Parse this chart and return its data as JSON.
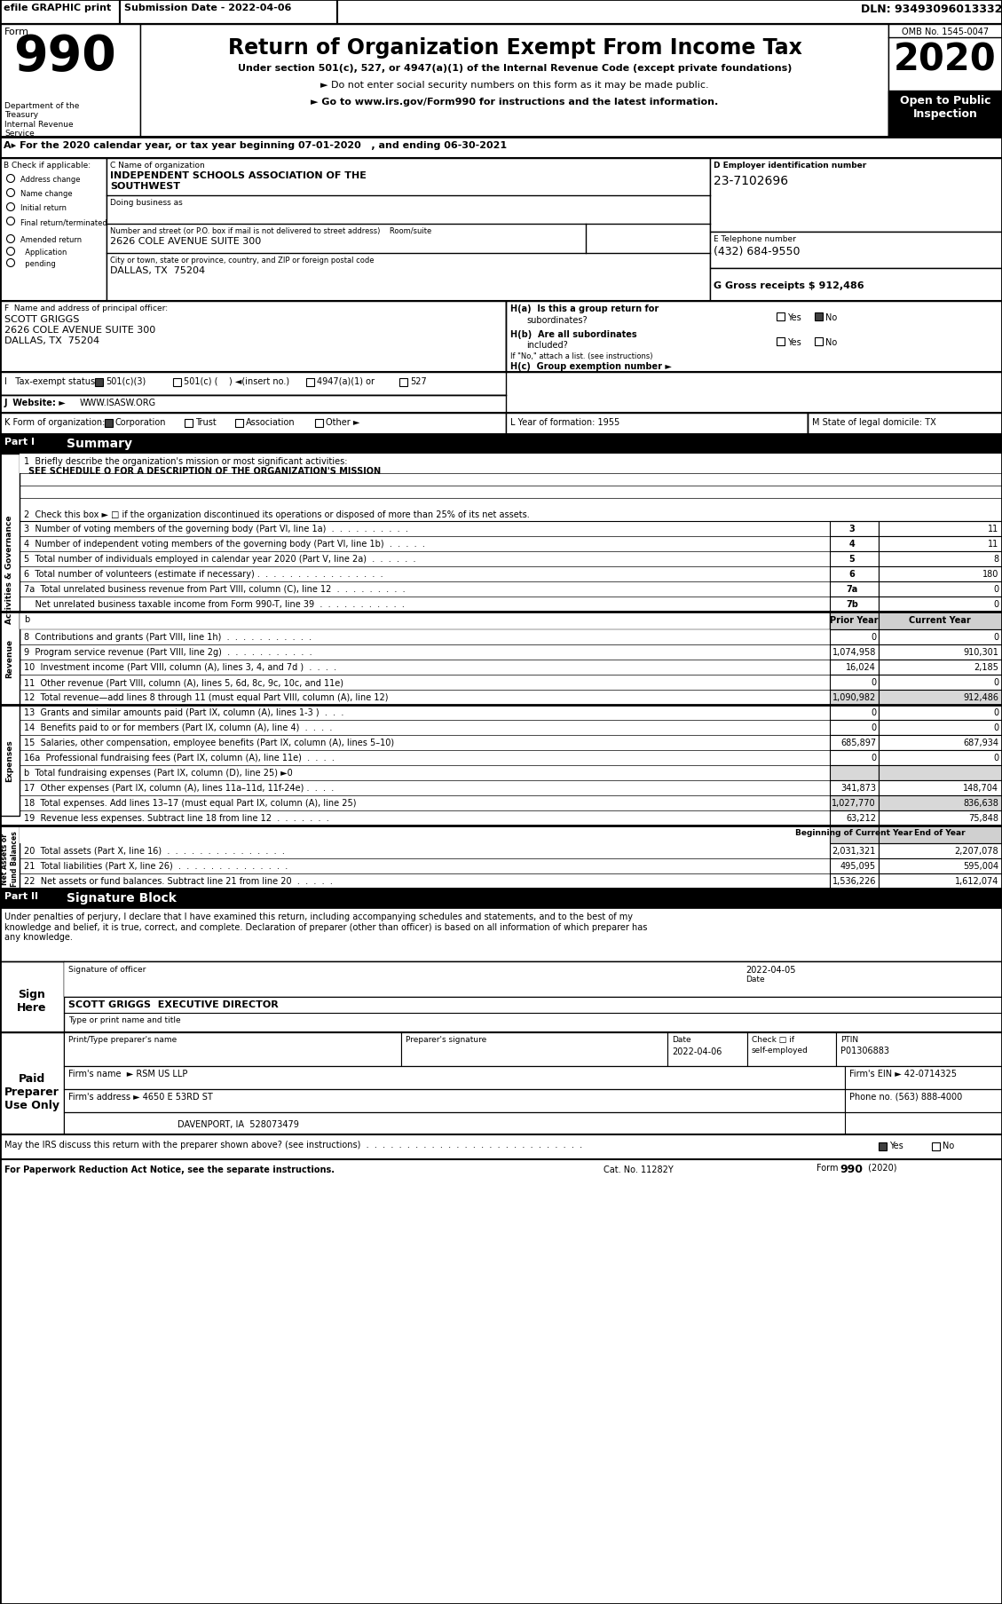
{
  "title": "Return of Organization Exempt From Income Tax",
  "form_number": "990",
  "year": "2020",
  "omb": "OMB No. 1545-0047",
  "efile_text": "efile GRAPHIC print",
  "submission_date": "Submission Date - 2022-04-06",
  "dln": "DLN: 93493096013332",
  "under_section": "Under section 501(c), 527, or 4947(a)(1) of the Internal Revenue Code (except private foundations)",
  "do_not_enter": "► Do not enter social security numbers on this form as it may be made public.",
  "go_to": "► Go to www.irs.gov/Form990 for instructions and the latest information.",
  "open_to_public": "Open to Public\nInspection",
  "section_a": "A▸ For the 2020 calendar year, or tax year beginning 07-01-2020   , and ending 06-30-2021",
  "org_name": "INDEPENDENT SCHOOLS ASSOCIATION OF THE\nSOUTHWEST",
  "ein": "23-7102696",
  "phone": "(432) 684-9550",
  "gross_receipts": "G Gross receipts $ 912,486",
  "principal_officer": "SCOTT GRIGGS\n2626 COLE AVENUE SUITE 300\nDALLAS, TX  75204",
  "prior_year": "Prior Year",
  "current_year": "Current Year",
  "beg_current": "Beginning of Current Year",
  "end_year": "End of Year",
  "sig_declaration": "Under penalties of perjury, I declare that I have examined this return, including accompanying schedules and statements, and to the best of my\nknowledge and belief, it is true, correct, and complete. Declaration of preparer (other than officer) is based on all information of which preparer has\nany knowledge.",
  "sig_name": "SCOTT GRIGGS  EXECUTIVE DIRECTOR",
  "preparer_ptin": "P01306883",
  "firms_ein": "42-0714325",
  "firms_address": "4650 E 53RD ST",
  "firms_city": "DAVENPORT, IA  528073479",
  "firms_phone": "Phone no. (563) 888-4000",
  "cat_no": "Cat. No. 11282Y",
  "form990_bottom": "Form 990 (2020)",
  "bg_color": "#ffffff"
}
